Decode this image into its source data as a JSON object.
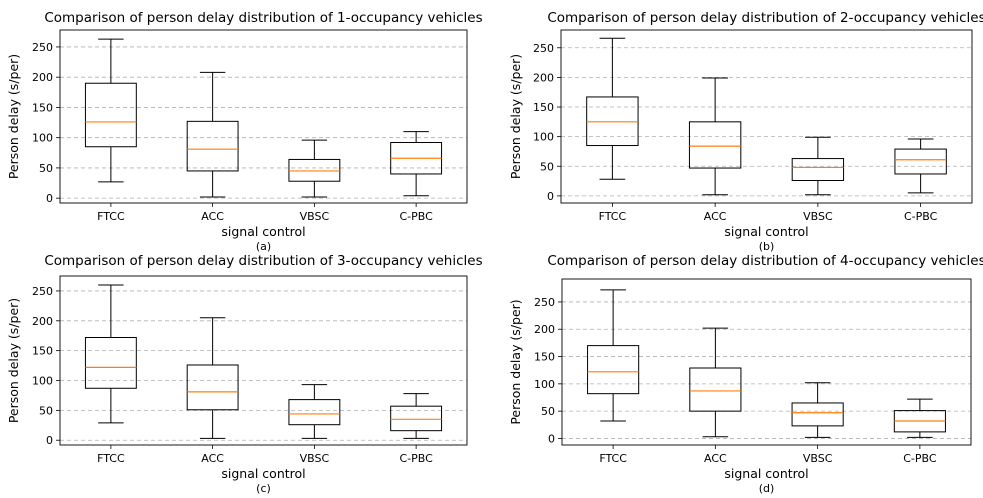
{
  "colors": {
    "box": "#000000",
    "median": "#ff7f0e",
    "grid": "#b0b0b0",
    "frame": "#000000"
  },
  "chart_data": [
    {
      "type": "box",
      "title": "Comparison of person delay distribution of 1-occupancy vehicles",
      "xlabel": "signal control",
      "ylabel": "Person delay (s/per)",
      "sublabel": "(a)",
      "categories": [
        "FTCC",
        "ACC",
        "VBSC",
        "C-PBC"
      ],
      "yticks": [
        0,
        50,
        100,
        150,
        200,
        250
      ],
      "ylim": [
        -8,
        278
      ],
      "grid": "y-dashed",
      "boxes": [
        {
          "min": 27,
          "q1": 85,
          "median": 126,
          "q3": 190,
          "max": 263
        },
        {
          "min": 2,
          "q1": 45,
          "median": 81,
          "q3": 127,
          "max": 208
        },
        {
          "min": 2,
          "q1": 28,
          "median": 45,
          "q3": 64,
          "max": 96
        },
        {
          "min": 4,
          "q1": 40,
          "median": 66,
          "q3": 92,
          "max": 110
        }
      ]
    },
    {
      "type": "box",
      "title": "Comparison of person delay distribution of 2-occupancy vehicles",
      "xlabel": "signal control",
      "ylabel": "Person delay (s/per)",
      "sublabel": "(b)",
      "categories": [
        "FTCC",
        "ACC",
        "VBSC",
        "C-PBC"
      ],
      "yticks": [
        0,
        50,
        100,
        150,
        200,
        250
      ],
      "ylim": [
        -12,
        280
      ],
      "grid": "y-dashed",
      "boxes": [
        {
          "min": 28,
          "q1": 85,
          "median": 125,
          "q3": 167,
          "max": 266
        },
        {
          "min": 2,
          "q1": 47,
          "median": 84,
          "q3": 125,
          "max": 199
        },
        {
          "min": 2,
          "q1": 26,
          "median": 48,
          "q3": 63,
          "max": 99
        },
        {
          "min": 5,
          "q1": 37,
          "median": 61,
          "q3": 79,
          "max": 96
        }
      ]
    },
    {
      "type": "box",
      "title": "Comparison of person delay distribution of 3-occupancy vehicles",
      "xlabel": "signal control",
      "ylabel": "Person delay (s/per)",
      "sublabel": "(c)",
      "categories": [
        "FTCC",
        "ACC",
        "VBSC",
        "C-PBC"
      ],
      "yticks": [
        0,
        50,
        100,
        150,
        200,
        250
      ],
      "ylim": [
        -8,
        275
      ],
      "grid": "y-dashed",
      "boxes": [
        {
          "min": 29,
          "q1": 87,
          "median": 122,
          "q3": 172,
          "max": 260
        },
        {
          "min": 3,
          "q1": 51,
          "median": 81,
          "q3": 126,
          "max": 205
        },
        {
          "min": 3,
          "q1": 26,
          "median": 44,
          "q3": 68,
          "max": 93
        },
        {
          "min": 3,
          "q1": 16,
          "median": 35,
          "q3": 57,
          "max": 78
        }
      ]
    },
    {
      "type": "box",
      "title": "Comparison of person delay distribution of 4-occupancy vehicles",
      "xlabel": "signal control",
      "ylabel": "Person delay (s/per)",
      "sublabel": "(d)",
      "categories": [
        "FTCC",
        "ACC",
        "VBSC",
        "C-PBC"
      ],
      "yticks": [
        0,
        50,
        100,
        150,
        200,
        250
      ],
      "ylim": [
        -12,
        292
      ],
      "grid": "y-dashed",
      "boxes": [
        {
          "min": 32,
          "q1": 82,
          "median": 122,
          "q3": 170,
          "max": 272
        },
        {
          "min": 3,
          "q1": 50,
          "median": 87,
          "q3": 129,
          "max": 202
        },
        {
          "min": 2,
          "q1": 23,
          "median": 47,
          "q3": 65,
          "max": 102
        },
        {
          "min": 2,
          "q1": 12,
          "median": 32,
          "q3": 51,
          "max": 72
        }
      ]
    }
  ]
}
